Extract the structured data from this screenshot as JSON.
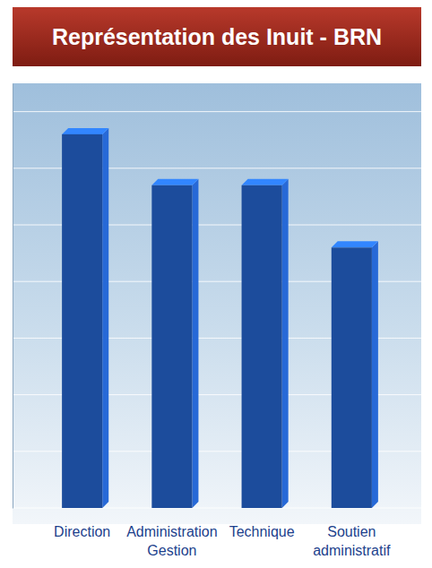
{
  "chart_data": {
    "type": "bar",
    "title": "Représentation des Inuit - BRN",
    "categories": [
      "Direction",
      "Administration Gestion",
      "Technique",
      "Soutien administratif"
    ],
    "values": [
      6.6,
      5.7,
      5.7,
      4.6
    ],
    "color": "#1c4c9c",
    "ylim": [
      0,
      7.5
    ],
    "yticks": [
      0,
      1,
      2,
      3,
      4,
      5,
      6,
      7
    ],
    "grid": true,
    "tick_labels": false
  }
}
